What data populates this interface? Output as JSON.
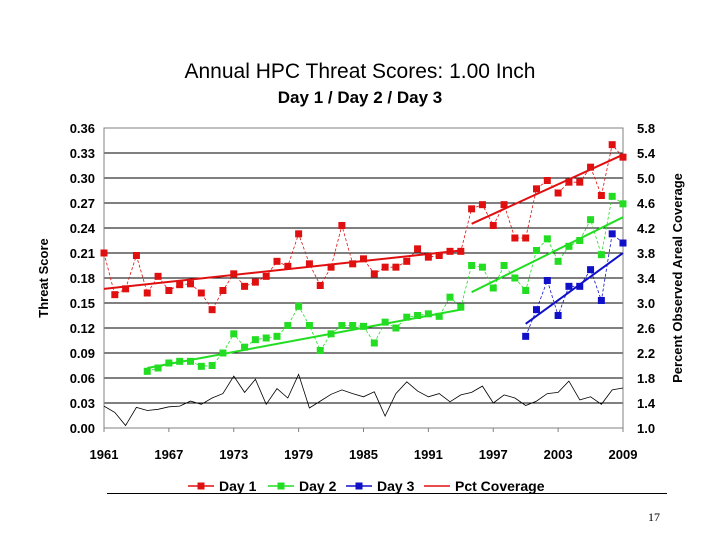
{
  "slide": {
    "page_number": "17"
  },
  "chart_data": {
    "type": "line",
    "title": "Annual HPC Threat Scores:  1.00 Inch",
    "subtitle": "Day 1 / Day 2 / Day 3",
    "ylabel": "Threat Score",
    "y2label": "Percent Observed Areal Coverage",
    "xlim": [
      1961,
      2009
    ],
    "ylim": [
      0.0,
      0.36
    ],
    "y2lim": [
      1.0,
      5.8
    ],
    "x_ticks": [
      1961,
      1967,
      1973,
      1979,
      1985,
      1991,
      1997,
      2003,
      2009
    ],
    "y_ticks": [
      "0.00",
      "0.03",
      "0.06",
      "0.09",
      "0.12",
      "0.15",
      "0.18",
      "0.21",
      "0.24",
      "0.27",
      "0.30",
      "0.33",
      "0.36"
    ],
    "y2_ticks": [
      "1.0",
      "1.4",
      "1.8",
      "2.2",
      "2.6",
      "3.0",
      "3.4",
      "3.8",
      "4.2",
      "4.6",
      "5.0",
      "5.4",
      "5.8"
    ],
    "grid": true,
    "legend_position": "bottom",
    "colors": {
      "day1": "#e01010",
      "day2": "#22dd22",
      "day3": "#1010c8",
      "coverage": "#e01010",
      "coverage_line": "#000000"
    },
    "series": [
      {
        "name": "Day 1",
        "axis": "left",
        "style": "markers-line",
        "color": "#e01010",
        "x": [
          1961,
          1962,
          1963,
          1964,
          1965,
          1966,
          1967,
          1968,
          1969,
          1970,
          1971,
          1972,
          1973,
          1974,
          1975,
          1976,
          1977,
          1978,
          1979,
          1980,
          1981,
          1982,
          1983,
          1984,
          1985,
          1986,
          1987,
          1988,
          1989,
          1990,
          1991,
          1992,
          1993,
          1994,
          1995,
          1996,
          1997,
          1998,
          1999,
          2000,
          2001,
          2002,
          2003,
          2004,
          2005,
          2006,
          2007,
          2008,
          2009
        ],
        "values": [
          0.21,
          0.16,
          0.167,
          0.207,
          0.162,
          0.182,
          0.165,
          0.172,
          0.173,
          0.162,
          0.142,
          0.165,
          0.185,
          0.17,
          0.175,
          0.182,
          0.2,
          0.194,
          0.233,
          0.197,
          0.171,
          0.193,
          0.243,
          0.197,
          0.203,
          0.185,
          0.193,
          0.193,
          0.2,
          0.215,
          0.205,
          0.207,
          0.212,
          0.212,
          0.263,
          0.268,
          0.243,
          0.268,
          0.228,
          0.228,
          0.287,
          0.297,
          0.282,
          0.295,
          0.295,
          0.313,
          0.279,
          0.34,
          0.325
        ]
      },
      {
        "name": "Day 2",
        "axis": "left",
        "style": "markers-line",
        "color": "#22dd22",
        "x": [
          1965,
          1966,
          1967,
          1968,
          1969,
          1970,
          1971,
          1972,
          1973,
          1974,
          1975,
          1976,
          1977,
          1978,
          1979,
          1980,
          1981,
          1982,
          1983,
          1984,
          1985,
          1986,
          1987,
          1988,
          1989,
          1990,
          1991,
          1992,
          1993,
          1994,
          1995,
          1996,
          1997,
          1998,
          1999,
          2000,
          2001,
          2002,
          2003,
          2004,
          2005,
          2006,
          2007,
          2008,
          2009
        ],
        "values": [
          0.068,
          0.072,
          0.078,
          0.08,
          0.08,
          0.074,
          0.075,
          0.09,
          0.113,
          0.097,
          0.106,
          0.108,
          0.11,
          0.123,
          0.146,
          0.123,
          0.093,
          0.113,
          0.123,
          0.123,
          0.122,
          0.102,
          0.127,
          0.12,
          0.133,
          0.135,
          0.137,
          0.134,
          0.157,
          0.145,
          0.195,
          0.193,
          0.168,
          0.195,
          0.18,
          0.165,
          0.213,
          0.227,
          0.2,
          0.218,
          0.225,
          0.25,
          0.208,
          0.278,
          0.269
        ]
      },
      {
        "name": "Day 3",
        "axis": "left",
        "style": "markers-line",
        "color": "#1010c8",
        "x": [
          2000,
          2001,
          2002,
          2003,
          2004,
          2005,
          2006,
          2007,
          2008,
          2009
        ],
        "values": [
          0.11,
          0.142,
          0.177,
          0.135,
          0.17,
          0.17,
          0.19,
          0.153,
          0.233,
          0.222
        ]
      },
      {
        "name": "Pct Coverage",
        "axis": "right",
        "style": "thin-line",
        "color": "#000000",
        "x": [
          1961,
          1962,
          1963,
          1964,
          1965,
          1966,
          1967,
          1968,
          1969,
          1970,
          1971,
          1972,
          1973,
          1974,
          1975,
          1976,
          1977,
          1978,
          1979,
          1980,
          1981,
          1982,
          1983,
          1984,
          1985,
          1986,
          1987,
          1988,
          1989,
          1990,
          1991,
          1992,
          1993,
          1994,
          1995,
          1996,
          1997,
          1998,
          1999,
          2000,
          2001,
          2002,
          2003,
          2004,
          2005,
          2006,
          2007,
          2008,
          2009
        ],
        "values": [
          1.35,
          1.25,
          1.04,
          1.33,
          1.28,
          1.3,
          1.34,
          1.35,
          1.43,
          1.38,
          1.48,
          1.55,
          1.83,
          1.57,
          1.78,
          1.38,
          1.63,
          1.48,
          1.86,
          1.32,
          1.43,
          1.54,
          1.61,
          1.55,
          1.5,
          1.58,
          1.19,
          1.55,
          1.74,
          1.59,
          1.5,
          1.55,
          1.42,
          1.53,
          1.57,
          1.67,
          1.4,
          1.53,
          1.48,
          1.36,
          1.43,
          1.55,
          1.57,
          1.75,
          1.45,
          1.5,
          1.38,
          1.61,
          1.64
        ]
      }
    ],
    "trendlines": [
      {
        "series": "Day 1",
        "color": "#e01010",
        "x": [
          1961,
          1994
        ],
        "values": [
          0.167,
          0.213
        ]
      },
      {
        "series": "Day 1",
        "color": "#e01010",
        "x": [
          1995,
          2009
        ],
        "values": [
          0.245,
          0.328
        ]
      },
      {
        "series": "Day 2",
        "color": "#22dd22",
        "x": [
          1965,
          1994
        ],
        "values": [
          0.072,
          0.142
        ]
      },
      {
        "series": "Day 2",
        "color": "#22dd22",
        "x": [
          1995,
          2009
        ],
        "values": [
          0.163,
          0.253
        ]
      },
      {
        "series": "Day 3",
        "color": "#1010c8",
        "x": [
          2000,
          2009
        ],
        "values": [
          0.125,
          0.21
        ]
      }
    ]
  }
}
